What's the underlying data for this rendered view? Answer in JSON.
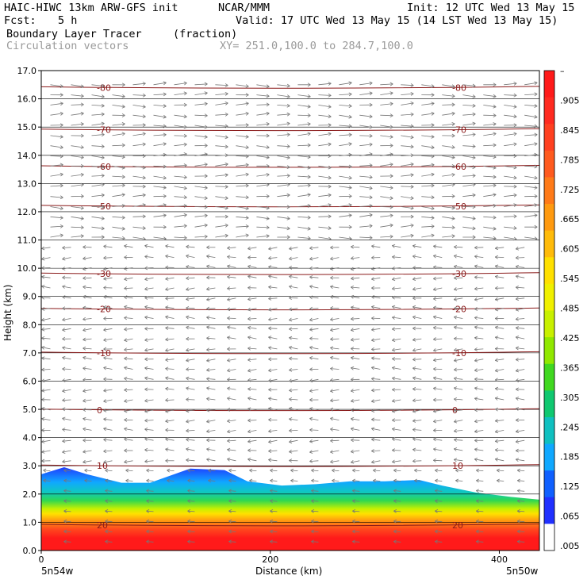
{
  "header": {
    "model": "HAIC-HIWC 13km ARW-GFS init",
    "org": "NCAR/MMM",
    "init": "Init: 12 UTC Wed 13 May 15",
    "fcst_label": "Fcst:",
    "fcst_value": "5 h",
    "valid": "Valid: 17 UTC Wed 13 May 15 (14 LST Wed 13 May 15)",
    "field": "Boundary Layer Tracer",
    "units": "(fraction)",
    "vectors": "Circulation vectors",
    "xy": "XY= 251.0,100.0 to 284.7,100.0"
  },
  "chart_data": {
    "type": "heatmap",
    "xlabel": "Distance (km)",
    "ylabel": "Height (km)",
    "xlim": [
      0,
      435
    ],
    "ylim": [
      0,
      17
    ],
    "x_ticks": [
      "0",
      "200",
      "400"
    ],
    "y_ticks": [
      "0.0",
      "1.0",
      "2.0",
      "3.0",
      "4.0",
      "5.0",
      "6.0",
      "7.0",
      "8.0",
      "9.0",
      "10.0",
      "11.0",
      "12.0",
      "13.0",
      "14.0",
      "15.0",
      "16.0",
      "17.0"
    ],
    "x_end_labels": {
      "left": "5n54w",
      "right": "5n50w"
    },
    "colorbar_labels": [
      "–",
      ".905",
      ".845",
      ".785",
      ".725",
      ".665",
      ".605",
      ".545",
      ".485",
      ".425",
      ".365",
      ".305",
      ".245",
      ".185",
      ".125",
      ".065",
      ".005"
    ],
    "colorbar_colors": [
      "#ff1a1a",
      "#ff2a20",
      "#ff4020",
      "#ff5a1e",
      "#ff7a18",
      "#ff9a10",
      "#ffbb0a",
      "#ffe000",
      "#f0f000",
      "#c8f000",
      "#90e800",
      "#40d820",
      "#10c870",
      "#10c0c0",
      "#10a8ff",
      "#1060ff",
      "#2030ff",
      "#ffffff"
    ],
    "temperature_contours": [
      {
        "label": "-80",
        "y": 16.4
      },
      {
        "label": "-70",
        "y": 14.9
      },
      {
        "label": "-60",
        "y": 13.6
      },
      {
        "label": "-50",
        "y": 12.2
      },
      {
        "label": "-30",
        "y": 9.8
      },
      {
        "label": "-20",
        "y": 8.55
      },
      {
        "label": "-10",
        "y": 7.0
      },
      {
        "label": "0",
        "y": 4.98
      },
      {
        "label": "10",
        "y": 3.0
      },
      {
        "label": "20",
        "y": 0.9
      }
    ],
    "tracer_top_km": [
      [
        0,
        2.7
      ],
      [
        20,
        2.95
      ],
      [
        40,
        2.7
      ],
      [
        70,
        2.4
      ],
      [
        95,
        2.4
      ],
      [
        130,
        2.9
      ],
      [
        160,
        2.85
      ],
      [
        180,
        2.45
      ],
      [
        210,
        2.3
      ],
      [
        240,
        2.35
      ],
      [
        270,
        2.45
      ],
      [
        300,
        2.45
      ],
      [
        330,
        2.5
      ],
      [
        350,
        2.3
      ],
      [
        380,
        2.05
      ],
      [
        410,
        1.9
      ],
      [
        435,
        1.8
      ]
    ],
    "grid": true,
    "legend_placement": "right"
  }
}
